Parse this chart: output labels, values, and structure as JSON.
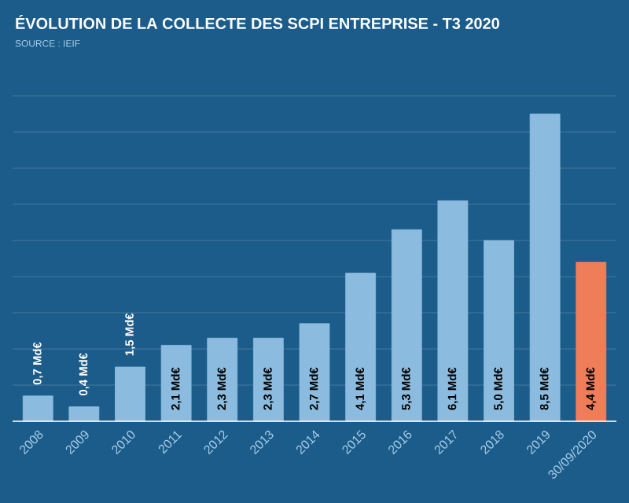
{
  "chart_data": {
    "type": "bar",
    "title": "ÉVOLUTION DE LA COLLECTE DES SCPI ENTREPRISE - T3 2020",
    "subtitle": "SOURCE : IEIF",
    "categories": [
      "2008",
      "2009",
      "2010",
      "2011",
      "2012",
      "2013",
      "2014",
      "2015",
      "2016",
      "2017",
      "2018",
      "2019",
      "30/09/2020"
    ],
    "values": [
      0.7,
      0.4,
      1.5,
      2.1,
      2.3,
      2.3,
      2.7,
      4.1,
      5.3,
      6.1,
      5.0,
      8.5,
      4.4
    ],
    "colors": [
      "#8bbcdf",
      "#8bbcdf",
      "#8bbcdf",
      "#8bbcdf",
      "#8bbcdf",
      "#8bbcdf",
      "#8bbcdf",
      "#8bbcdf",
      "#8bbcdf",
      "#8bbcdf",
      "#8bbcdf",
      "#8bbcdf",
      "#f07d5a"
    ],
    "value_labels": [
      "0,7 Md€",
      "0,4 Md€",
      "1,5 Md€",
      "2,1 Md€",
      "2,3 Md€",
      "2,3 Md€",
      "2,7 Md€",
      "4,1 Md€",
      "5,3 Md€",
      "6,1 Md€",
      "5,0 Md€",
      "8,5 Md€",
      "4,4 Md€"
    ],
    "ylim": [
      0,
      9
    ],
    "yticks": [
      {
        "value": 0,
        "label": null
      },
      {
        "value": 1,
        "label": null
      },
      {
        "value": 2,
        "label": null
      },
      {
        "value": 3,
        "label": null
      },
      {
        "value": 4,
        "label": null
      },
      {
        "value": 5,
        "label": null
      },
      {
        "value": 6,
        "label": null
      },
      {
        "value": 7,
        "label": null
      },
      {
        "value": 8,
        "label": null
      },
      {
        "value": 9,
        "label": null
      }
    ],
    "grid": "y",
    "tick_labels": "x"
  }
}
